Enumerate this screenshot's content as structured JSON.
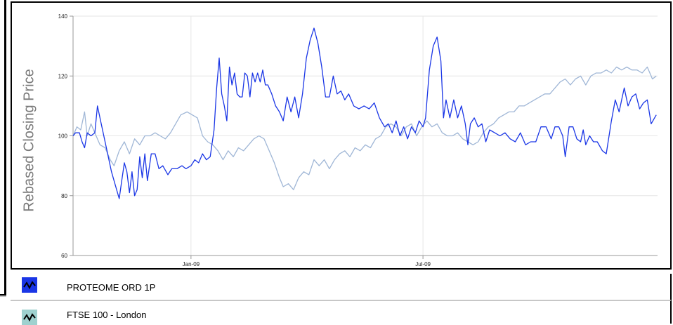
{
  "chart_data": {
    "type": "line",
    "title": "",
    "xlabel": "",
    "ylabel": "Rebased Closing Price",
    "ylim": [
      60,
      140
    ],
    "yticks": [
      60,
      80,
      100,
      120,
      140
    ],
    "x_tick_labels": [
      "Jan-09",
      "Jul-09"
    ],
    "x_range": [
      "2008-10-01",
      "2009-12-31"
    ],
    "grid": true,
    "series": [
      {
        "name": "PROTEOME ORD 1P",
        "color": "#1a36e6",
        "points": [
          [
            "2008-10-01",
            100
          ],
          [
            "2008-10-03",
            101
          ],
          [
            "2008-10-06",
            101
          ],
          [
            "2008-10-08",
            98
          ],
          [
            "2008-10-10",
            96
          ],
          [
            "2008-10-12",
            101
          ],
          [
            "2008-10-15",
            100
          ],
          [
            "2008-10-18",
            101
          ],
          [
            "2008-10-20",
            110
          ],
          [
            "2008-10-23",
            104
          ],
          [
            "2008-10-27",
            96
          ],
          [
            "2008-10-31",
            88
          ],
          [
            "2008-11-04",
            82
          ],
          [
            "2008-11-06",
            79
          ],
          [
            "2008-11-08",
            85
          ],
          [
            "2008-11-10",
            91
          ],
          [
            "2008-11-12",
            88
          ],
          [
            "2008-11-14",
            81
          ],
          [
            "2008-11-16",
            88
          ],
          [
            "2008-11-18",
            80
          ],
          [
            "2008-11-20",
            82
          ],
          [
            "2008-11-22",
            93
          ],
          [
            "2008-11-24",
            86
          ],
          [
            "2008-11-26",
            94
          ],
          [
            "2008-11-28",
            85
          ],
          [
            "2008-12-01",
            94
          ],
          [
            "2008-12-04",
            94
          ],
          [
            "2008-12-07",
            89
          ],
          [
            "2008-12-10",
            90
          ],
          [
            "2008-12-14",
            87
          ],
          [
            "2008-12-17",
            89
          ],
          [
            "2008-12-21",
            89
          ],
          [
            "2008-12-25",
            90
          ],
          [
            "2008-12-28",
            89
          ],
          [
            "2009-01-01",
            90
          ],
          [
            "2009-01-04",
            92
          ],
          [
            "2009-01-07",
            91
          ],
          [
            "2009-01-10",
            94
          ],
          [
            "2009-01-13",
            92
          ],
          [
            "2009-01-16",
            93
          ],
          [
            "2009-01-19",
            102
          ],
          [
            "2009-01-21",
            116
          ],
          [
            "2009-01-23",
            126
          ],
          [
            "2009-01-25",
            114
          ],
          [
            "2009-01-27",
            110
          ],
          [
            "2009-01-29",
            105
          ],
          [
            "2009-01-31",
            123
          ],
          [
            "2009-02-02",
            117
          ],
          [
            "2009-02-04",
            121
          ],
          [
            "2009-02-06",
            114
          ],
          [
            "2009-02-08",
            113
          ],
          [
            "2009-02-10",
            113
          ],
          [
            "2009-02-12",
            121
          ],
          [
            "2009-02-14",
            120
          ],
          [
            "2009-02-16",
            113
          ],
          [
            "2009-02-18",
            121
          ],
          [
            "2009-02-20",
            118
          ],
          [
            "2009-02-22",
            121
          ],
          [
            "2009-02-24",
            118
          ],
          [
            "2009-02-26",
            122
          ],
          [
            "2009-02-28",
            117
          ],
          [
            "2009-03-02",
            117
          ],
          [
            "2009-03-05",
            114
          ],
          [
            "2009-03-08",
            110
          ],
          [
            "2009-03-11",
            108
          ],
          [
            "2009-03-14",
            105
          ],
          [
            "2009-03-17",
            113
          ],
          [
            "2009-03-20",
            108
          ],
          [
            "2009-03-23",
            113
          ],
          [
            "2009-03-26",
            106
          ],
          [
            "2009-03-29",
            114
          ],
          [
            "2009-04-01",
            126
          ],
          [
            "2009-04-04",
            132
          ],
          [
            "2009-04-07",
            136
          ],
          [
            "2009-04-10",
            131
          ],
          [
            "2009-04-13",
            123
          ],
          [
            "2009-04-16",
            113
          ],
          [
            "2009-04-19",
            113
          ],
          [
            "2009-04-22",
            120
          ],
          [
            "2009-04-25",
            114
          ],
          [
            "2009-04-28",
            115
          ],
          [
            "2009-05-01",
            112
          ],
          [
            "2009-05-04",
            114
          ],
          [
            "2009-05-08",
            110
          ],
          [
            "2009-05-12",
            109
          ],
          [
            "2009-05-16",
            110
          ],
          [
            "2009-05-20",
            109
          ],
          [
            "2009-05-24",
            111
          ],
          [
            "2009-05-28",
            106
          ],
          [
            "2009-06-01",
            103
          ],
          [
            "2009-06-04",
            104
          ],
          [
            "2009-06-07",
            101
          ],
          [
            "2009-06-10",
            105
          ],
          [
            "2009-06-13",
            100
          ],
          [
            "2009-06-16",
            103
          ],
          [
            "2009-06-19",
            99
          ],
          [
            "2009-06-22",
            103
          ],
          [
            "2009-06-25",
            101
          ],
          [
            "2009-06-28",
            105
          ],
          [
            "2009-07-01",
            103
          ],
          [
            "2009-07-03",
            106
          ],
          [
            "2009-07-06",
            122
          ],
          [
            "2009-07-09",
            130
          ],
          [
            "2009-07-12",
            133
          ],
          [
            "2009-07-15",
            125
          ],
          [
            "2009-07-17",
            106
          ],
          [
            "2009-07-19",
            112
          ],
          [
            "2009-07-22",
            106
          ],
          [
            "2009-07-25",
            112
          ],
          [
            "2009-07-28",
            106
          ],
          [
            "2009-07-31",
            110
          ],
          [
            "2009-08-03",
            104
          ],
          [
            "2009-08-05",
            97
          ],
          [
            "2009-08-07",
            104
          ],
          [
            "2009-08-10",
            106
          ],
          [
            "2009-08-13",
            103
          ],
          [
            "2009-08-16",
            104
          ],
          [
            "2009-08-19",
            98
          ],
          [
            "2009-08-22",
            102
          ],
          [
            "2009-08-26",
            101
          ],
          [
            "2009-08-30",
            100
          ],
          [
            "2009-09-03",
            101
          ],
          [
            "2009-09-07",
            99
          ],
          [
            "2009-09-11",
            98
          ],
          [
            "2009-09-15",
            101
          ],
          [
            "2009-09-19",
            97
          ],
          [
            "2009-09-23",
            98
          ],
          [
            "2009-09-27",
            98
          ],
          [
            "2009-10-01",
            103
          ],
          [
            "2009-10-05",
            103
          ],
          [
            "2009-10-09",
            99
          ],
          [
            "2009-10-12",
            103
          ],
          [
            "2009-10-15",
            103
          ],
          [
            "2009-10-18",
            100
          ],
          [
            "2009-10-20",
            93
          ],
          [
            "2009-10-23",
            103
          ],
          [
            "2009-10-26",
            103
          ],
          [
            "2009-10-29",
            99
          ],
          [
            "2009-11-01",
            98
          ],
          [
            "2009-11-03",
            102
          ],
          [
            "2009-11-05",
            97
          ],
          [
            "2009-11-08",
            100
          ],
          [
            "2009-11-11",
            98
          ],
          [
            "2009-11-14",
            98
          ],
          [
            "2009-11-18",
            95
          ],
          [
            "2009-11-21",
            94
          ],
          [
            "2009-11-25",
            105
          ],
          [
            "2009-11-28",
            112
          ],
          [
            "2009-12-01",
            108
          ],
          [
            "2009-12-03",
            112
          ],
          [
            "2009-12-05",
            116
          ],
          [
            "2009-12-08",
            110
          ],
          [
            "2009-12-11",
            113
          ],
          [
            "2009-12-14",
            114
          ],
          [
            "2009-12-17",
            109
          ],
          [
            "2009-12-20",
            111
          ],
          [
            "2009-12-23",
            112
          ],
          [
            "2009-12-26",
            104
          ],
          [
            "2009-12-30",
            107
          ]
        ]
      },
      {
        "name": "FTSE 100 - London",
        "color": "#9fb6d6",
        "points": [
          [
            "2008-10-01",
            100
          ],
          [
            "2008-10-04",
            103
          ],
          [
            "2008-10-07",
            102
          ],
          [
            "2008-10-10",
            108
          ],
          [
            "2008-10-12",
            100
          ],
          [
            "2008-10-15",
            104
          ],
          [
            "2008-10-18",
            101
          ],
          [
            "2008-10-22",
            97
          ],
          [
            "2008-10-26",
            96
          ],
          [
            "2008-10-30",
            92
          ],
          [
            "2008-11-02",
            90
          ],
          [
            "2008-11-06",
            95
          ],
          [
            "2008-11-10",
            98
          ],
          [
            "2008-11-14",
            94
          ],
          [
            "2008-11-18",
            99
          ],
          [
            "2008-11-22",
            97
          ],
          [
            "2008-11-26",
            100
          ],
          [
            "2008-11-30",
            100
          ],
          [
            "2008-12-04",
            101
          ],
          [
            "2008-12-08",
            100
          ],
          [
            "2008-12-12",
            99
          ],
          [
            "2008-12-16",
            101
          ],
          [
            "2008-12-20",
            104
          ],
          [
            "2008-12-24",
            107
          ],
          [
            "2008-12-29",
            108
          ],
          [
            "2009-01-02",
            107
          ],
          [
            "2009-01-06",
            106
          ],
          [
            "2009-01-10",
            100
          ],
          [
            "2009-01-14",
            98
          ],
          [
            "2009-01-18",
            97
          ],
          [
            "2009-01-22",
            95
          ],
          [
            "2009-01-26",
            92
          ],
          [
            "2009-01-30",
            95
          ],
          [
            "2009-02-03",
            93
          ],
          [
            "2009-02-07",
            96
          ],
          [
            "2009-02-11",
            95
          ],
          [
            "2009-02-15",
            97
          ],
          [
            "2009-02-19",
            99
          ],
          [
            "2009-02-23",
            100
          ],
          [
            "2009-02-27",
            99
          ],
          [
            "2009-03-03",
            95
          ],
          [
            "2009-03-07",
            91
          ],
          [
            "2009-03-11",
            86
          ],
          [
            "2009-03-14",
            83
          ],
          [
            "2009-03-18",
            84
          ],
          [
            "2009-03-22",
            82
          ],
          [
            "2009-03-26",
            86
          ],
          [
            "2009-03-30",
            88
          ],
          [
            "2009-04-03",
            87
          ],
          [
            "2009-04-07",
            92
          ],
          [
            "2009-04-11",
            90
          ],
          [
            "2009-04-15",
            92
          ],
          [
            "2009-04-19",
            89
          ],
          [
            "2009-04-23",
            92
          ],
          [
            "2009-04-27",
            94
          ],
          [
            "2009-05-01",
            95
          ],
          [
            "2009-05-05",
            93
          ],
          [
            "2009-05-09",
            96
          ],
          [
            "2009-05-13",
            95
          ],
          [
            "2009-05-17",
            97
          ],
          [
            "2009-05-21",
            96
          ],
          [
            "2009-05-25",
            99
          ],
          [
            "2009-05-29",
            100
          ],
          [
            "2009-06-02",
            103
          ],
          [
            "2009-06-06",
            104
          ],
          [
            "2009-06-10",
            103
          ],
          [
            "2009-06-14",
            100
          ],
          [
            "2009-06-18",
            103
          ],
          [
            "2009-06-22",
            104
          ],
          [
            "2009-06-26",
            100
          ],
          [
            "2009-06-30",
            103
          ],
          [
            "2009-07-04",
            105
          ],
          [
            "2009-07-08",
            103
          ],
          [
            "2009-07-12",
            104
          ],
          [
            "2009-07-16",
            101
          ],
          [
            "2009-07-20",
            100
          ],
          [
            "2009-07-24",
            100
          ],
          [
            "2009-07-28",
            101
          ],
          [
            "2009-08-01",
            99
          ],
          [
            "2009-08-05",
            98
          ],
          [
            "2009-08-09",
            97
          ],
          [
            "2009-08-13",
            98
          ],
          [
            "2009-08-17",
            101
          ],
          [
            "2009-08-21",
            103
          ],
          [
            "2009-08-25",
            104
          ],
          [
            "2009-08-29",
            106
          ],
          [
            "2009-09-02",
            107
          ],
          [
            "2009-09-06",
            108
          ],
          [
            "2009-09-10",
            108
          ],
          [
            "2009-09-14",
            110
          ],
          [
            "2009-09-18",
            110
          ],
          [
            "2009-09-22",
            111
          ],
          [
            "2009-09-26",
            112
          ],
          [
            "2009-09-30",
            113
          ],
          [
            "2009-10-04",
            114
          ],
          [
            "2009-10-08",
            114
          ],
          [
            "2009-10-12",
            116
          ],
          [
            "2009-10-16",
            118
          ],
          [
            "2009-10-20",
            119
          ],
          [
            "2009-10-24",
            117
          ],
          [
            "2009-10-28",
            119
          ],
          [
            "2009-11-01",
            120
          ],
          [
            "2009-11-05",
            117
          ],
          [
            "2009-11-09",
            120
          ],
          [
            "2009-11-13",
            121
          ],
          [
            "2009-11-17",
            121
          ],
          [
            "2009-11-21",
            122
          ],
          [
            "2009-11-25",
            121
          ],
          [
            "2009-11-29",
            123
          ],
          [
            "2009-12-03",
            122
          ],
          [
            "2009-12-07",
            123
          ],
          [
            "2009-12-11",
            122
          ],
          [
            "2009-12-15",
            122
          ],
          [
            "2009-12-19",
            121
          ],
          [
            "2009-12-23",
            123
          ],
          [
            "2009-12-27",
            119
          ],
          [
            "2009-12-30",
            120
          ]
        ]
      }
    ]
  }
}
